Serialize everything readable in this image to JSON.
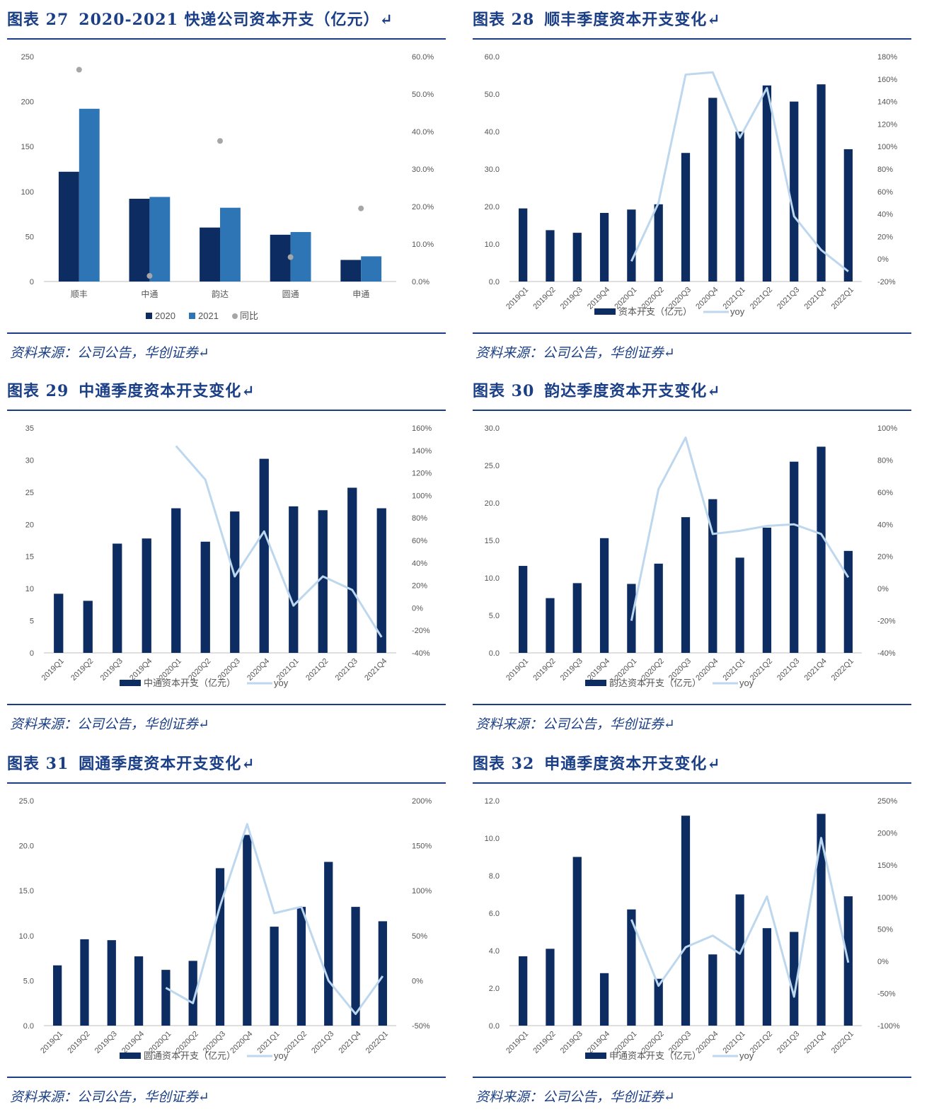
{
  "panels": [
    {
      "id": "p27",
      "title_num": "图表 27",
      "title_text": "2020-2021 快递公司资本开支（亿元）↵",
      "source": "资料来源：公司公告，华创证券↵",
      "chart_data": {
        "type": "bar",
        "categories": [
          "顺丰",
          "中通",
          "韵达",
          "圆通",
          "申通"
        ],
        "series": [
          {
            "name": "2020",
            "values": [
              122,
              92,
              60,
              52,
              24
            ],
            "color": "#0d2d62"
          },
          {
            "name": "2021",
            "values": [
              192,
              94,
              82,
              55,
              28
            ],
            "color": "#2e75b6"
          }
        ],
        "yoy_series": {
          "name": "同比",
          "values": [
            56.5,
            1.5,
            37.5,
            6.5,
            19.5
          ],
          "color": "#a6a6a6"
        },
        "ylim": [
          0,
          250
        ],
        "yticks": [
          "0",
          "50",
          "100",
          "150",
          "200",
          "250"
        ],
        "y2lim": [
          0,
          60
        ],
        "y2ticks": [
          "0.0%",
          "10.0%",
          "20.0%",
          "30.0%",
          "40.0%",
          "50.0%",
          "60.0%"
        ],
        "legend": "bottom",
        "grid": false
      }
    },
    {
      "id": "p28",
      "title_num": "图表 28",
      "title_text": "顺丰季度资本开支变化↵",
      "source": "资料来源：公司公告，华创证券↵",
      "chart_data": {
        "type": "bar",
        "categories": [
          "2019Q1",
          "2019Q2",
          "2019Q3",
          "2019Q4",
          "2020Q1",
          "2020Q2",
          "2020Q3",
          "2020Q4",
          "2021Q1",
          "2021Q2",
          "2021Q3",
          "2021Q4",
          "2022Q1"
        ],
        "series": [
          {
            "name": "资本开支（亿元）",
            "values": [
              19.5,
              13.7,
              13,
              18.3,
              19.2,
              20.6,
              34.3,
              49,
              40,
              52.3,
              48,
              52.6,
              35.3
            ],
            "color": "#0d2d62"
          }
        ],
        "line_series": {
          "name": "yoy",
          "values": [
            null,
            null,
            null,
            null,
            -2,
            50,
            164,
            166,
            108,
            152,
            38,
            8,
            -11
          ],
          "color": "#bdd7ee"
        },
        "ylim": [
          0,
          60
        ],
        "yticks": [
          "0.0",
          "10.0",
          "20.0",
          "30.0",
          "40.0",
          "50.0",
          "60.0"
        ],
        "y2lim": [
          -20,
          180
        ],
        "y2ticks": [
          "-20%",
          "0%",
          "20%",
          "40%",
          "60%",
          "80%",
          "100%",
          "120%",
          "140%",
          "160%",
          "180%"
        ],
        "legend": "bottom",
        "grid": false
      }
    },
    {
      "id": "p29",
      "title_num": "图表 29",
      "title_text": "中通季度资本开支变化↵",
      "source": "资料来源：公司公告，华创证券↵",
      "chart_data": {
        "type": "bar",
        "categories": [
          "2019Q1",
          "2019Q2",
          "2019Q3",
          "2019Q4",
          "2020Q1",
          "2020Q2",
          "2020Q3",
          "2020Q4",
          "2021Q1",
          "2021Q2",
          "2021Q3",
          "2021Q4"
        ],
        "series": [
          {
            "name": "中通资本开支（亿元）",
            "values": [
              9.2,
              8.1,
              17,
              17.8,
              22.5,
              17.3,
              22,
              30.2,
              22.8,
              22.2,
              25.7,
              22.5
            ],
            "color": "#0d2d62"
          }
        ],
        "line_series": {
          "name": "yoy",
          "values": [
            null,
            null,
            null,
            null,
            144,
            114,
            28,
            68,
            2,
            28,
            16,
            -26
          ],
          "color": "#bdd7ee"
        },
        "ylim": [
          0,
          35
        ],
        "yticks": [
          "0",
          "5",
          "10",
          "15",
          "20",
          "25",
          "30",
          "35"
        ],
        "y2lim": [
          -40,
          160
        ],
        "y2ticks": [
          "-40%",
          "-20%",
          "0%",
          "20%",
          "40%",
          "60%",
          "80%",
          "100%",
          "120%",
          "140%",
          "160%"
        ],
        "legend": "bottom",
        "grid": false
      }
    },
    {
      "id": "p30",
      "title_num": "图表 30",
      "title_text": "韵达季度资本开支变化↵",
      "source": "资料来源：公司公告，华创证券↵",
      "chart_data": {
        "type": "bar",
        "categories": [
          "2019Q1",
          "2019Q2",
          "2019Q3",
          "2019Q4",
          "2020Q1",
          "2020Q2",
          "2020Q3",
          "2020Q4",
          "2021Q1",
          "2021Q2",
          "2021Q3",
          "2021Q4",
          "2022Q1"
        ],
        "series": [
          {
            "name": "韵达资本开支（亿元）",
            "values": [
              11.6,
              7.3,
              9.3,
              15.3,
              9.2,
              11.9,
              18.1,
              20.5,
              12.7,
              16.7,
              25.5,
              27.5,
              13.6
            ],
            "color": "#0d2d62"
          }
        ],
        "line_series": {
          "name": "yoy",
          "values": [
            null,
            null,
            null,
            null,
            -20,
            62,
            94,
            34,
            36,
            39,
            40,
            34,
            7
          ],
          "color": "#bdd7ee"
        },
        "ylim": [
          0,
          30
        ],
        "yticks": [
          "0.0",
          "5.0",
          "10.0",
          "15.0",
          "20.0",
          "25.0",
          "30.0"
        ],
        "y2lim": [
          -40,
          100
        ],
        "y2ticks": [
          "-40%",
          "-20%",
          "0%",
          "20%",
          "40%",
          "60%",
          "80%",
          "100%"
        ],
        "legend": "bottom",
        "grid": false
      }
    },
    {
      "id": "p31",
      "title_num": "图表 31",
      "title_text": "圆通季度资本开支变化↵",
      "source": "资料来源：公司公告，华创证券↵",
      "chart_data": {
        "type": "bar",
        "categories": [
          "2019Q1",
          "2019Q2",
          "2019Q3",
          "2019Q4",
          "2020Q1",
          "2020Q2",
          "2020Q3",
          "2020Q4",
          "2021Q1",
          "2021Q2",
          "2021Q3",
          "2021Q4",
          "2022Q1"
        ],
        "series": [
          {
            "name": "圆通资本开支（亿元）",
            "values": [
              6.7,
              9.6,
              9.5,
              7.7,
              6.2,
              7.2,
              17.5,
              21.2,
              11,
              13.2,
              18.2,
              13.2,
              11.6
            ],
            "color": "#0d2d62"
          }
        ],
        "line_series": {
          "name": "yoy",
          "values": [
            null,
            null,
            null,
            null,
            -8,
            -25,
            83,
            174,
            75,
            82,
            0,
            -37,
            5
          ],
          "color": "#bdd7ee"
        },
        "ylim": [
          0,
          25
        ],
        "yticks": [
          "0.0",
          "5.0",
          "10.0",
          "15.0",
          "20.0",
          "25.0"
        ],
        "y2lim": [
          -50,
          200
        ],
        "y2ticks": [
          "-50%",
          "0%",
          "50%",
          "100%",
          "150%",
          "200%"
        ],
        "legend": "bottom",
        "grid": false
      }
    },
    {
      "id": "p32",
      "title_num": "图表 32",
      "title_text": "申通季度资本开支变化↵",
      "source": "资料来源：公司公告，华创证券↵",
      "chart_data": {
        "type": "bar",
        "categories": [
          "2019Q1",
          "2019Q2",
          "2019Q3",
          "2019Q4",
          "2020Q1",
          "2020Q2",
          "2020Q3",
          "2020Q4",
          "2021Q1",
          "2021Q2",
          "2021Q3",
          "2021Q4",
          "2022Q1"
        ],
        "series": [
          {
            "name": "申通资本开支（亿元）",
            "values": [
              3.7,
              4.1,
              9,
              2.8,
              6.2,
              2.5,
              11.2,
              3.8,
              7,
              5.2,
              5,
              11.3,
              6.9
            ],
            "color": "#0d2d62"
          }
        ],
        "line_series": {
          "name": "yoy",
          "values": [
            null,
            null,
            null,
            null,
            65,
            -38,
            22,
            40,
            12,
            101,
            -55,
            192,
            -2
          ],
          "color": "#bdd7ee"
        },
        "ylim": [
          0,
          12
        ],
        "yticks": [
          "0.0",
          "2.0",
          "4.0",
          "6.0",
          "8.0",
          "10.0",
          "12.0"
        ],
        "y2lim": [
          -100,
          250
        ],
        "y2ticks": [
          "-100%",
          "-50%",
          "0%",
          "50%",
          "100%",
          "150%",
          "200%",
          "250%"
        ],
        "legend": "bottom",
        "grid": false
      }
    }
  ]
}
